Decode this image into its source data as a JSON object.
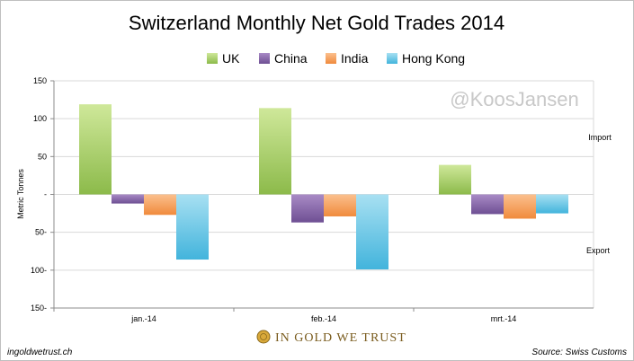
{
  "chart_data": {
    "type": "bar",
    "title": "Switzerland Monthly Net Gold Trades 2014",
    "ylabel": "Metric Tonnes",
    "xlabel": "",
    "categories": [
      "jan.-14",
      "feb.-14",
      "mrt.-14"
    ],
    "ylim": [
      -150,
      150
    ],
    "yticks": [
      150,
      100,
      50,
      0,
      -50,
      -100,
      -150
    ],
    "ytick_labels": [
      "150",
      "100",
      "50",
      "-",
      "50-",
      "100-",
      "150-"
    ],
    "series": [
      {
        "name": "UK",
        "values": [
          119,
          114,
          39
        ],
        "color_top": "#cfe89a",
        "color_bottom": "#8cba4a"
      },
      {
        "name": "China",
        "values": [
          -12,
          -37,
          -26
        ],
        "color_top": "#a98bc6",
        "color_bottom": "#6e4f93"
      },
      {
        "name": "India",
        "values": [
          -27,
          -29,
          -32
        ],
        "color_top": "#fbc08e",
        "color_bottom": "#f08a3c"
      },
      {
        "name": "Hong Kong",
        "values": [
          -86,
          -99,
          -25
        ],
        "color_top": "#a8e0f2",
        "color_bottom": "#42b4dc"
      }
    ],
    "grid": true,
    "legend_position": "top-center",
    "annotations": {
      "import": "Import",
      "export": "Export"
    }
  },
  "watermark": "@KoosJansen",
  "footer": {
    "left": "ingoldwetrust.ch",
    "right": "Source: Swiss Customs",
    "brand": "IN GOLD WE TRUST"
  }
}
